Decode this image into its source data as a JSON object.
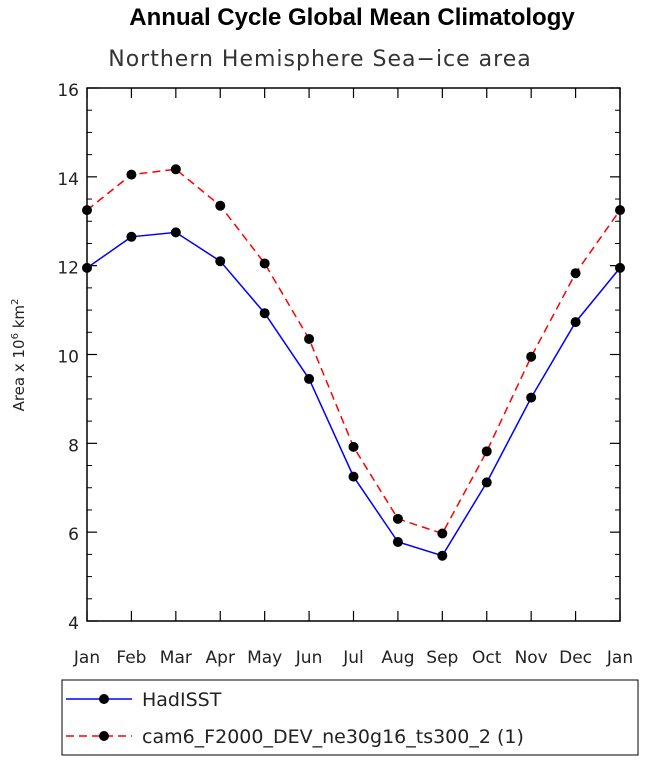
{
  "chart_data": {
    "type": "line",
    "title": "Annual Cycle Global Mean Climatology",
    "subtitle": "Northern Hemisphere Sea−ice area",
    "ylabel_prefix": "Area x 10",
    "ylabel_exp": "6",
    "ylabel_unit": " km",
    "ylabel_unit_exp": "2",
    "xlabel": "",
    "categories": [
      "Jan",
      "Feb",
      "Mar",
      "Apr",
      "May",
      "Jun",
      "Jul",
      "Aug",
      "Sep",
      "Oct",
      "Nov",
      "Dec",
      "Jan"
    ],
    "ylim": [
      4,
      16
    ],
    "yticks": [
      4,
      6,
      8,
      10,
      12,
      14,
      16
    ],
    "series": [
      {
        "name": "HadISST",
        "color": "#0000ff",
        "dash": "solid",
        "values": [
          11.95,
          12.65,
          12.75,
          12.1,
          10.93,
          9.45,
          7.25,
          5.78,
          5.47,
          7.12,
          9.03,
          10.73,
          11.95
        ]
      },
      {
        "name": "cam6_F2000_DEV_ne30g16_ts300_2 (1)",
        "color": "#ff0000",
        "dash": "dashed",
        "values": [
          13.25,
          14.05,
          14.17,
          13.35,
          12.05,
          10.35,
          7.92,
          6.3,
          5.97,
          7.82,
          9.95,
          11.83,
          13.25
        ]
      }
    ],
    "legend_position": "bottom-left"
  }
}
